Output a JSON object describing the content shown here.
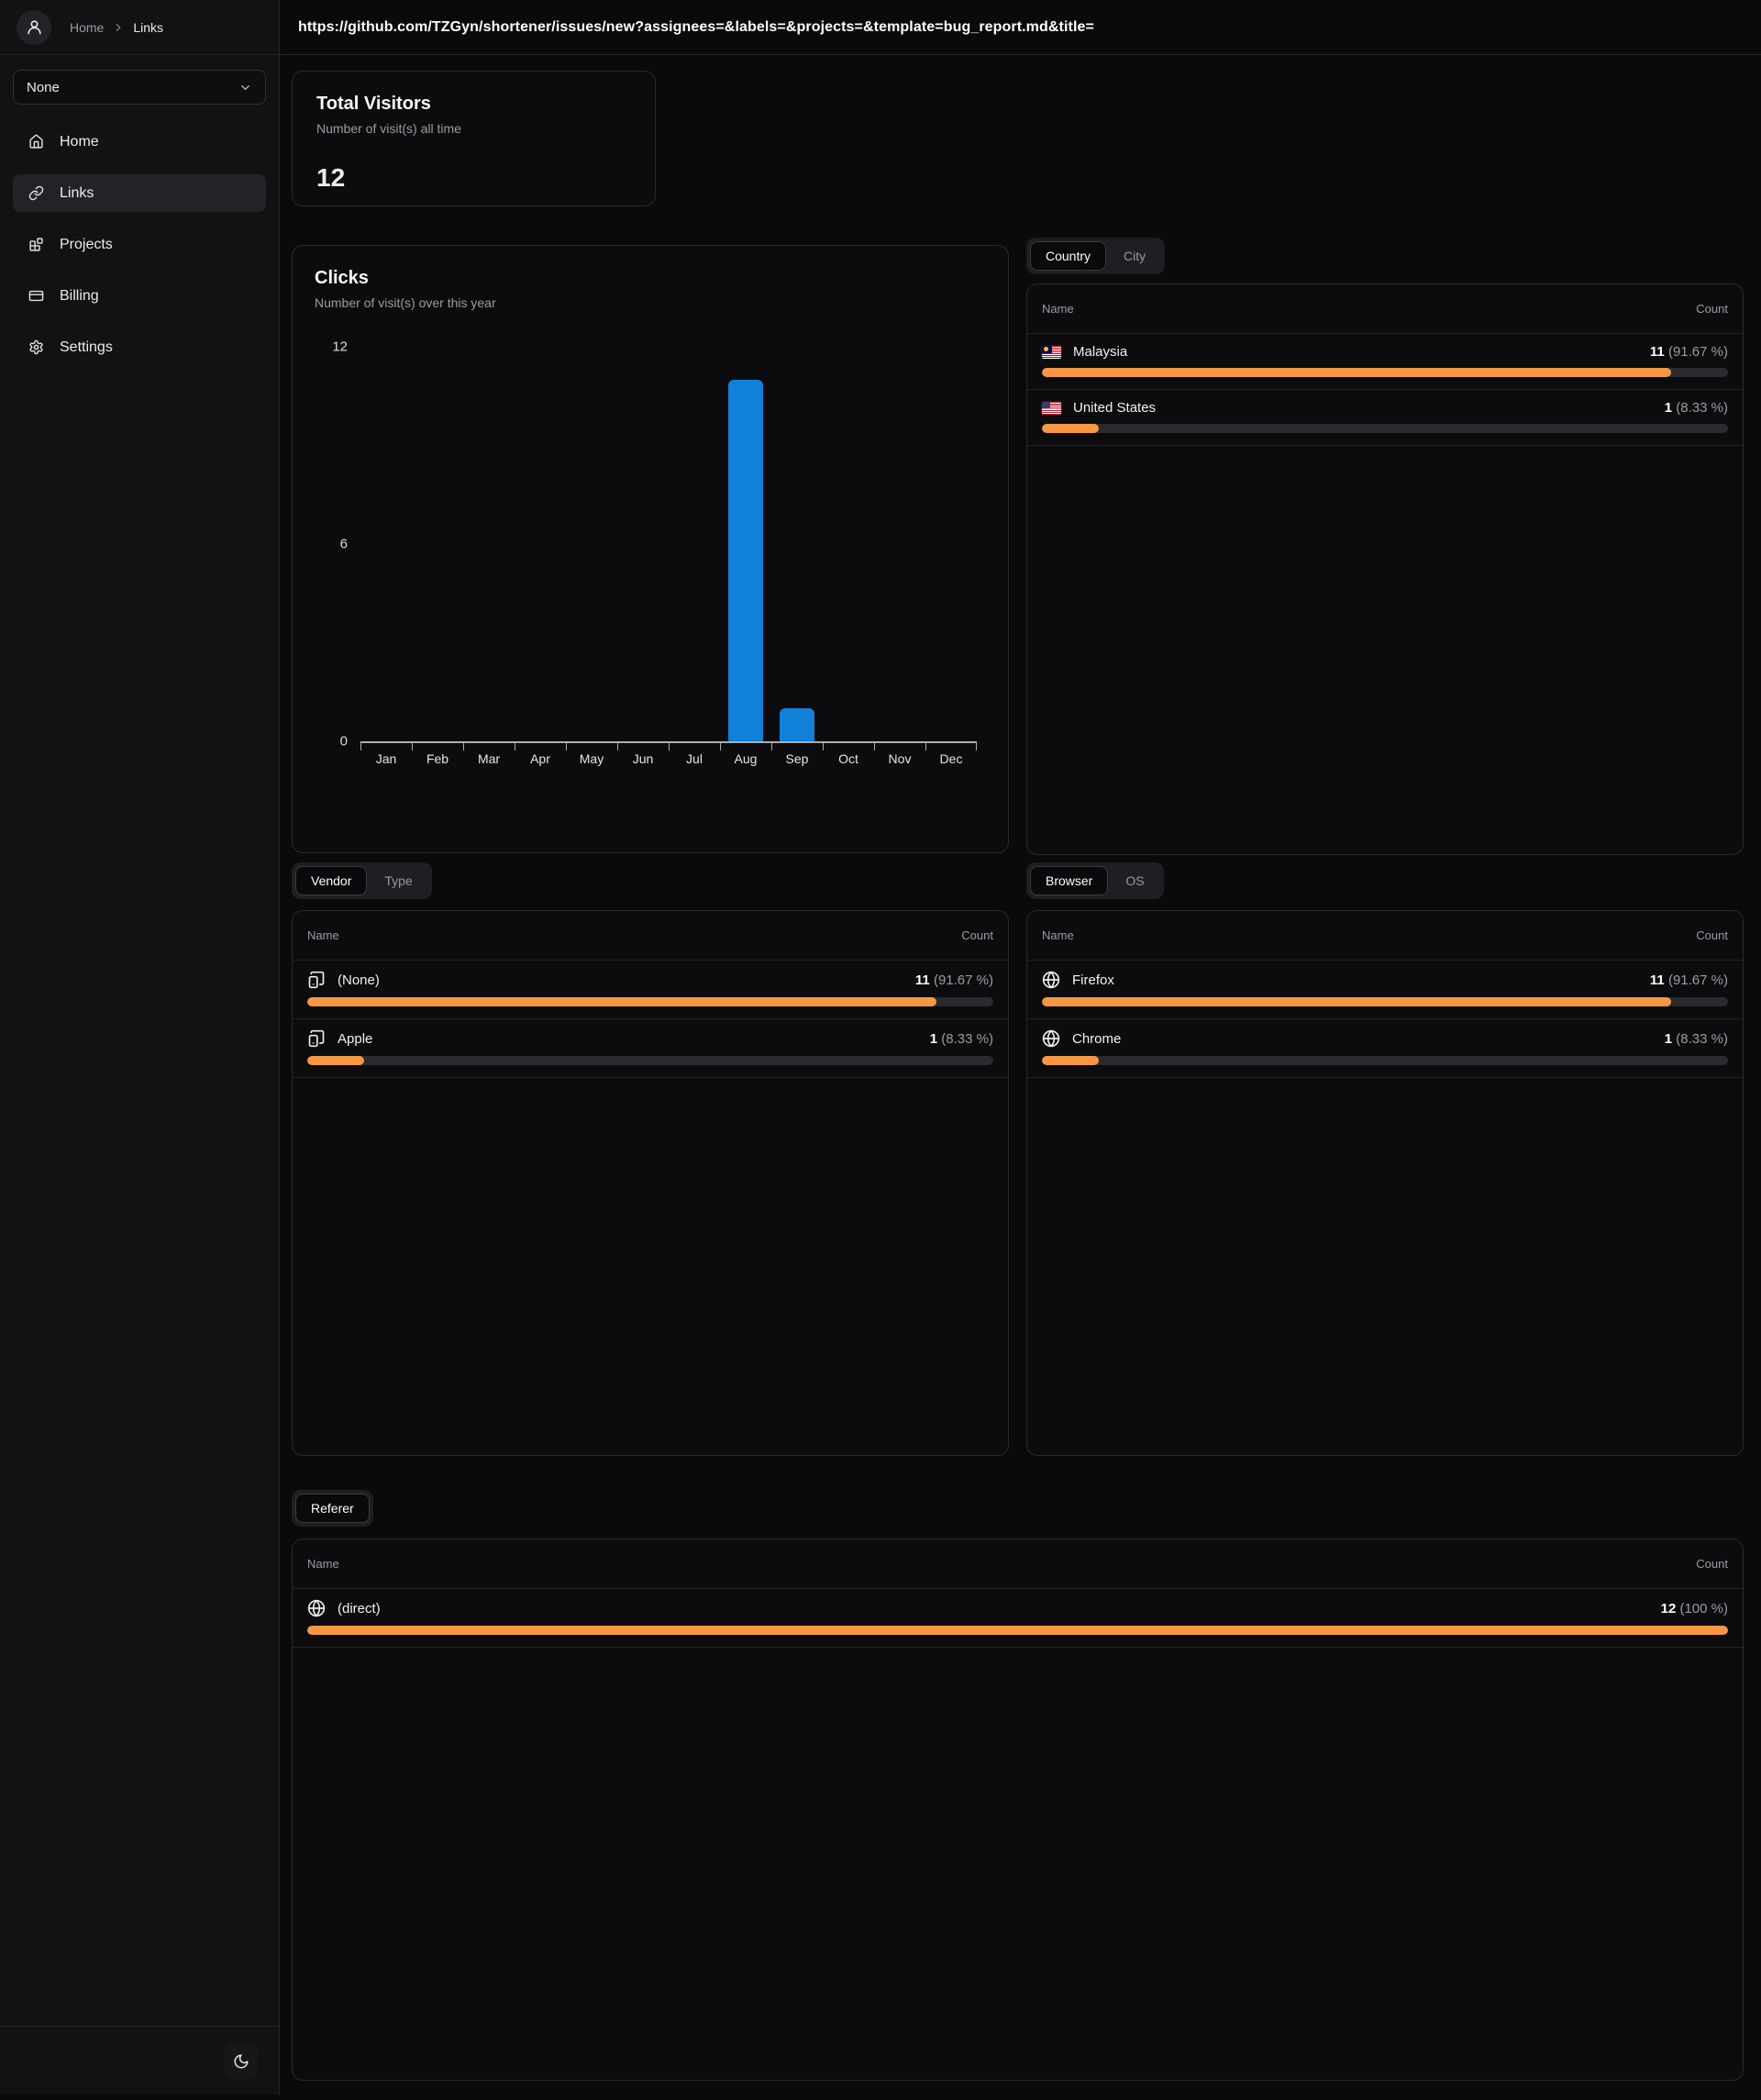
{
  "header": {
    "url": "https://github.com/TZGyn/shortener/issues/new?assignees=&labels=&projects=&template=bug_report.md&title=",
    "breadcrumb": {
      "root": "Home",
      "current": "Links"
    }
  },
  "sidebar": {
    "project_select_value": "None",
    "items": [
      {
        "label": "Home"
      },
      {
        "label": "Links"
      },
      {
        "label": "Projects"
      },
      {
        "label": "Billing"
      },
      {
        "label": "Settings"
      }
    ]
  },
  "stats": {
    "title": "Total Visitors",
    "subtitle": "Number of visit(s) all time",
    "value": "12"
  },
  "clicks": {
    "title": "Clicks",
    "subtitle": "Number of visit(s) over this year"
  },
  "chart_data": {
    "type": "bar",
    "title": "Clicks",
    "subtitle": "Number of visit(s) over this year",
    "categories": [
      "Jan",
      "Feb",
      "Mar",
      "Apr",
      "May",
      "Jun",
      "Jul",
      "Aug",
      "Sep",
      "Oct",
      "Nov",
      "Dec"
    ],
    "values": [
      0,
      0,
      0,
      0,
      0,
      0,
      0,
      11,
      1,
      0,
      0,
      0
    ],
    "xlabel": "",
    "ylabel": "",
    "ylim": [
      0,
      12
    ],
    "yticks": [
      0,
      6,
      12
    ],
    "grid": false,
    "bar_color": "#1080d8"
  },
  "location": {
    "tabs": [
      "Country",
      "City"
    ],
    "active_tab": "Country",
    "columns": {
      "name": "Name",
      "count": "Count"
    },
    "rows": [
      {
        "name": "Malaysia",
        "count": "11",
        "pct": "(91.67 %)",
        "percent": 91.67,
        "flag": "my"
      },
      {
        "name": "United States",
        "count": "1",
        "pct": "(8.33 %)",
        "percent": 8.33,
        "flag": "us"
      }
    ]
  },
  "device": {
    "tabs": [
      "Vendor",
      "Type"
    ],
    "active_tab": "Vendor",
    "columns": {
      "name": "Name",
      "count": "Count"
    },
    "rows": [
      {
        "name": "(None)",
        "count": "11",
        "pct": "(91.67 %)",
        "percent": 91.67
      },
      {
        "name": "Apple",
        "count": "1",
        "pct": "(8.33 %)",
        "percent": 8.33
      }
    ]
  },
  "browser": {
    "tabs": [
      "Browser",
      "OS"
    ],
    "active_tab": "Browser",
    "columns": {
      "name": "Name",
      "count": "Count"
    },
    "rows": [
      {
        "name": "Firefox",
        "count": "11",
        "pct": "(91.67 %)",
        "percent": 91.67
      },
      {
        "name": "Chrome",
        "count": "1",
        "pct": "(8.33 %)",
        "percent": 8.33
      }
    ]
  },
  "referer": {
    "tabs": [
      "Referer"
    ],
    "active_tab": "Referer",
    "columns": {
      "name": "Name",
      "count": "Count"
    },
    "rows": [
      {
        "name": "(direct)",
        "count": "12",
        "pct": "(100 %)",
        "percent": 100
      }
    ]
  },
  "theme": {
    "accent_orange": "#f79743",
    "bar_blue": "#1080d8"
  }
}
